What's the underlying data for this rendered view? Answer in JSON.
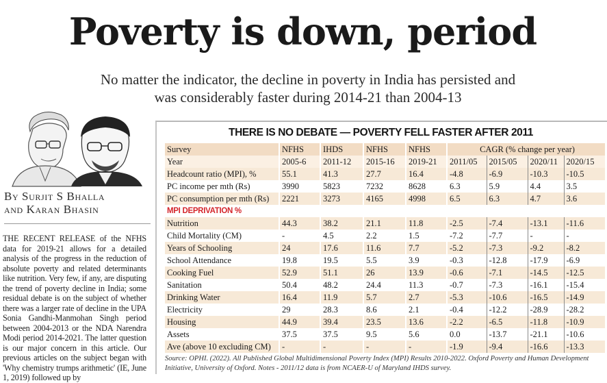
{
  "headline": "Poverty is down, period",
  "subhead_line1": "No matter the indicator, the decline in poverty in India has persisted and",
  "subhead_line2": "was considerably faster during 2014-21 than 2004-13",
  "byline_line1": "By Surjit S Bhalla",
  "byline_line2": "and Karan Bhasin",
  "body_text": "THE RECENT RELEASE of the NFHS data for 2019-21 allows for a detailed analysis of the progress in the reduction of absolute poverty and related determinants like nutrition. Very few, if any, are disputing the trend of poverty decline in India; some residual debate is on the subject of whether there was a larger rate of decline in the UPA Sonia Gandhi-Manmohan Singh period between 2004-2013 or the NDA Narendra Modi period 2014-2021. The latter question is our major concern in this article. Our previous articles on the subject began with 'Why chemistry trumps arithmetic' (IE, June 1, 2019) followed up by",
  "table_title": "THERE IS NO DEBATE — POVERTY FELL FASTER AFTER 2011",
  "header": {
    "col0": "Survey",
    "surveys": [
      "NFHS",
      "IHDS",
      "NFHS",
      "NFHS"
    ],
    "cagr": "CAGR (% change per year)"
  },
  "years": [
    "Year",
    "2005-6",
    "2011-12",
    "2015-16",
    "2019-21",
    "2011/05",
    "2015/05",
    "2020/11",
    "2020/15"
  ],
  "rows_top": [
    [
      "Headcount ratio (MPI), %",
      "55.1",
      "41.3",
      "27.7",
      "16.4",
      "-4.8",
      "-6.9",
      "-10.3",
      "-10.5"
    ],
    [
      "PC income per mth (Rs)",
      "3990",
      "5823",
      "7232",
      "8628",
      "6.3",
      "5.9",
      "4.4",
      "3.5"
    ],
    [
      "PC consumption per mth (Rs)",
      "2221",
      "3273",
      "4165",
      "4998",
      "6.5",
      "6.3",
      "4.7",
      "3.6"
    ]
  ],
  "mpi_label": "MPI DEPRIVATION %",
  "rows_mpi": [
    [
      "Nutrition",
      "44.3",
      "38.2",
      "21.1",
      "11.8",
      "-2.5",
      "-7.4",
      "-13.1",
      "-11.6"
    ],
    [
      "Child Mortality (CM)",
      "-",
      "4.5",
      "2.2",
      "1.5",
      "-7.2",
      "-7.7",
      "-",
      "-"
    ],
    [
      "Years of Schooling",
      "24",
      "17.6",
      "11.6",
      "7.7",
      "-5.2",
      "-7.3",
      "-9.2",
      "-8.2"
    ],
    [
      "School Attendance",
      "19.8",
      "19.5",
      "5.5",
      "3.9",
      "-0.3",
      "-12.8",
      "-17.9",
      "-6.9"
    ],
    [
      "Cooking Fuel",
      "52.9",
      "51.1",
      "26",
      "13.9",
      "-0.6",
      "-7.1",
      "-14.5",
      "-12.5"
    ],
    [
      "Sanitation",
      "50.4",
      "48.2",
      "24.4",
      "11.3",
      "-0.7",
      "-7.3",
      "-16.1",
      "-15.4"
    ],
    [
      "Drinking Water",
      "16.4",
      "11.9",
      "5.7",
      "2.7",
      "-5.3",
      "-10.6",
      "-16.5",
      "-14.9"
    ],
    [
      "Electricity",
      "29",
      "28.3",
      "8.6",
      "2.1",
      "-0.4",
      "-12.2",
      "-28.9",
      "-28.2"
    ],
    [
      "Housing",
      "44.9",
      "39.4",
      "23.5",
      "13.6",
      "-2.2",
      "-6.5",
      "-11.8",
      "-10.9"
    ],
    [
      "Assets",
      "37.5",
      "37.5",
      "9.5",
      "5.6",
      "0.0",
      "-13.7",
      "-21.1",
      "-10.6"
    ],
    [
      "Ave (above 10 excluding CM)",
      "-",
      "-",
      "-",
      "-",
      "-1.9",
      "-9.4",
      "-16.6",
      "-13.3"
    ]
  ],
  "source": "Source: OPHI. (2022). All Published Global Multidimensional Poverty Index (MPI) Results 2010-2022. Oxford Poverty and Human Development Initiative, University of Oxford. Notes - 2011/12 data is from NCAER-U of Maryland IHDS survey.",
  "colors": {
    "header_bg": "#f2dcc4",
    "row_light": "#f7e9d7",
    "mpi_red": "#d4252b"
  }
}
